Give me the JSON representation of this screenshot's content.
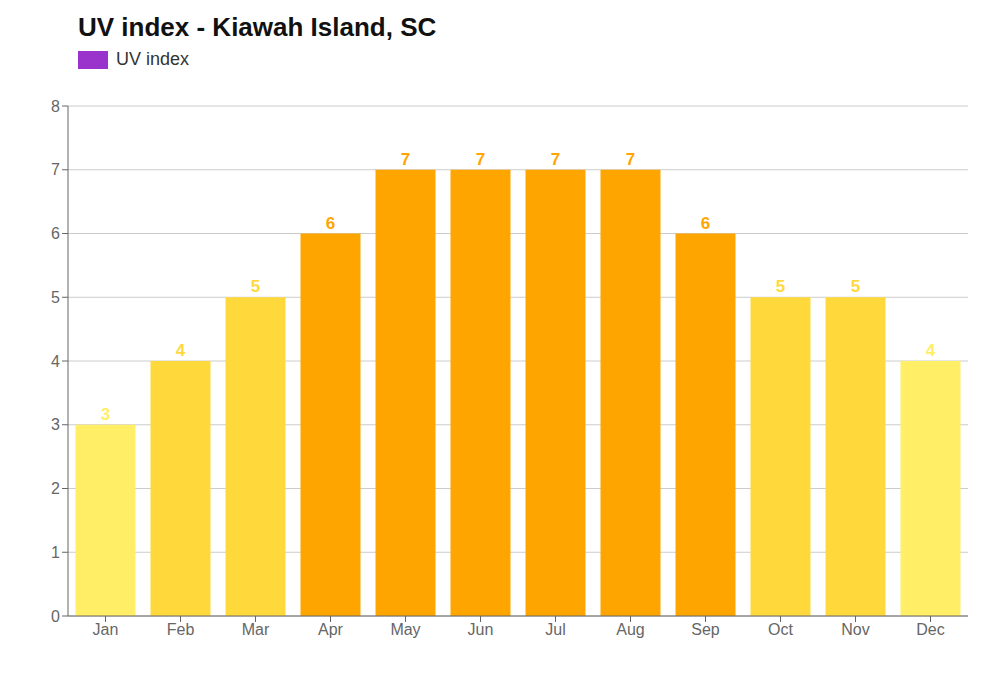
{
  "chart_data": {
    "type": "bar",
    "title": "UV index - Kiawah Island, SC",
    "categories": [
      "Jan",
      "Feb",
      "Mar",
      "Apr",
      "May",
      "Jun",
      "Jul",
      "Aug",
      "Sep",
      "Oct",
      "Nov",
      "Dec"
    ],
    "series": [
      {
        "name": "UV index",
        "color": "#9933CC",
        "colors": [
          "#FFEE66",
          "#FFD93B",
          "#FFD93B",
          "#FFA500",
          "#FFA500",
          "#FFA500",
          "#FFA500",
          "#FFA500",
          "#FFA500",
          "#FFD93B",
          "#FFD93B",
          "#FFEE66"
        ],
        "values": [
          3,
          4,
          5,
          6,
          7,
          7,
          7,
          7,
          6,
          5,
          5,
          4
        ]
      }
    ],
    "ylim": [
      0,
      8
    ],
    "yticks": [
      0,
      1,
      2,
      3,
      4,
      5,
      6,
      7,
      8
    ],
    "grid": true,
    "legend": "upper left",
    "data_labels": true
  }
}
